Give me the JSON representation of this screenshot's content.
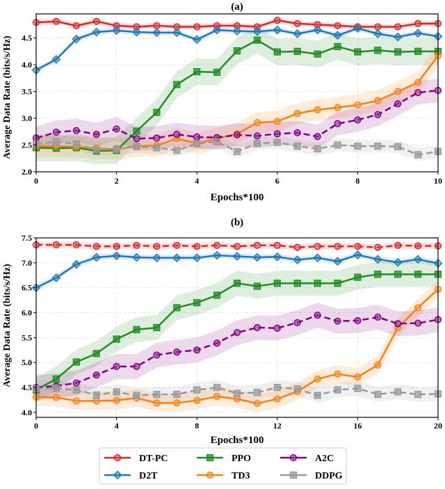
{
  "chart_data": [
    {
      "type": "line",
      "title": "(a)",
      "xlabel": "Epochs*100",
      "ylabel": "Average Data Rate (bits/s/Hz)",
      "xlim": [
        0,
        10
      ],
      "ylim": [
        2.0,
        4.95
      ],
      "xticks": [
        0,
        2,
        4,
        6,
        8,
        10
      ],
      "yticks": [
        2.0,
        2.5,
        3.0,
        3.5,
        4.0,
        4.5
      ],
      "ytick_labels": [
        "2.0",
        "2.5",
        "3.0",
        "3.5",
        "4.0",
        "4.5"
      ],
      "grid": true,
      "x": [
        0,
        0.5,
        1,
        1.5,
        2,
        2.5,
        3,
        3.5,
        4,
        4.5,
        5,
        5.5,
        6,
        6.5,
        7,
        7.5,
        8,
        8.5,
        9,
        9.5,
        10
      ],
      "series": [
        {
          "name": "DT-PC",
          "color": "#d62728",
          "marker": "circle",
          "dashed": false,
          "band": 0.05,
          "values": [
            4.79,
            4.81,
            4.73,
            4.81,
            4.73,
            4.71,
            4.73,
            4.71,
            4.71,
            4.73,
            4.73,
            4.71,
            4.83,
            4.77,
            4.75,
            4.73,
            4.71,
            4.71,
            4.71,
            4.77,
            4.77
          ]
        },
        {
          "name": "D2T",
          "color": "#1f77b4",
          "marker": "diamond",
          "dashed": false,
          "band": 0.05,
          "values": [
            3.9,
            4.1,
            4.48,
            4.61,
            4.64,
            4.61,
            4.6,
            4.6,
            4.47,
            4.65,
            4.63,
            4.62,
            4.65,
            4.58,
            4.65,
            4.55,
            4.68,
            4.58,
            4.52,
            4.59,
            4.53
          ]
        },
        {
          "name": "PPO",
          "color": "#228b22",
          "marker": "square",
          "dashed": false,
          "band": 0.25,
          "values": [
            2.45,
            2.44,
            2.45,
            2.39,
            2.4,
            2.76,
            3.11,
            3.63,
            3.87,
            3.86,
            4.26,
            4.46,
            4.24,
            4.25,
            4.2,
            4.34,
            4.24,
            4.27,
            4.24,
            4.25,
            4.25
          ]
        },
        {
          "name": "TD3",
          "color": "#ff7f0e",
          "marker": "circle",
          "dashed": false,
          "band": 0.2,
          "values": [
            2.48,
            2.48,
            2.47,
            2.44,
            2.42,
            2.48,
            2.49,
            2.62,
            2.53,
            2.62,
            2.71,
            2.92,
            2.94,
            3.09,
            3.16,
            3.2,
            3.25,
            3.33,
            3.5,
            3.67,
            4.17
          ]
        },
        {
          "name": "A2C",
          "color": "#800080",
          "marker": "circle",
          "dashed": true,
          "band": 0.22,
          "values": [
            2.63,
            2.74,
            2.77,
            2.7,
            2.8,
            2.62,
            2.63,
            2.7,
            2.65,
            2.64,
            2.69,
            2.67,
            2.71,
            2.73,
            2.66,
            2.9,
            2.97,
            3.07,
            3.27,
            3.48,
            3.52
          ]
        },
        {
          "name": "DDPG",
          "color": "#999999",
          "marker": "square",
          "dashed": true,
          "band": 0.12,
          "values": [
            2.52,
            2.56,
            2.52,
            2.41,
            2.43,
            2.47,
            2.45,
            2.4,
            2.53,
            2.56,
            2.38,
            2.53,
            2.55,
            2.48,
            2.43,
            2.5,
            2.48,
            2.48,
            2.47,
            2.32,
            2.38
          ]
        }
      ]
    },
    {
      "type": "line",
      "title": "(b)",
      "xlabel": "Epochs*100",
      "ylabel": "Average Data Rate (bits/s/Hz)",
      "xlim": [
        0,
        20
      ],
      "ylim": [
        3.9,
        7.5
      ],
      "xticks": [
        0,
        4,
        8,
        12,
        16,
        20
      ],
      "yticks": [
        4.0,
        4.5,
        5.0,
        5.5,
        6.0,
        6.5,
        7.0,
        7.5
      ],
      "ytick_labels": [
        "4.0",
        "4.5",
        "5.0",
        "5.5",
        "6.0",
        "6.5",
        "7.0",
        "7.5"
      ],
      "grid": true,
      "x": [
        0,
        1,
        2,
        3,
        4,
        5,
        6,
        7,
        8,
        9,
        10,
        11,
        12,
        13,
        14,
        15,
        16,
        17,
        18,
        19,
        20
      ],
      "series": [
        {
          "name": "DT-PC",
          "color": "#d62728",
          "marker": "circle",
          "dashed": true,
          "band": 0.06,
          "values": [
            7.36,
            7.36,
            7.36,
            7.33,
            7.33,
            7.35,
            7.33,
            7.35,
            7.33,
            7.35,
            7.33,
            7.35,
            7.35,
            7.31,
            7.33,
            7.33,
            7.33,
            7.31,
            7.35,
            7.34,
            7.34
          ]
        },
        {
          "name": "D2T",
          "color": "#1f77b4",
          "marker": "diamond",
          "dashed": false,
          "band": 0.06,
          "values": [
            6.5,
            6.7,
            6.97,
            7.11,
            7.14,
            7.11,
            7.1,
            7.1,
            7.1,
            7.15,
            7.13,
            7.11,
            7.12,
            7.06,
            7.1,
            7.03,
            7.16,
            7.07,
            7.01,
            7.07,
            6.99
          ]
        },
        {
          "name": "PPO",
          "color": "#228b22",
          "marker": "square",
          "dashed": false,
          "band": 0.25,
          "values": [
            4.45,
            4.67,
            5.01,
            5.18,
            5.47,
            5.66,
            5.7,
            6.1,
            6.2,
            6.35,
            6.59,
            6.53,
            6.59,
            6.59,
            6.59,
            6.59,
            6.71,
            6.77,
            6.77,
            6.77,
            6.77
          ]
        },
        {
          "name": "TD3",
          "color": "#ff7f0e",
          "marker": "circle",
          "dashed": false,
          "band": 0.18,
          "values": [
            4.31,
            4.3,
            4.23,
            4.23,
            4.24,
            4.29,
            4.19,
            4.19,
            4.24,
            4.32,
            4.27,
            4.18,
            4.27,
            4.42,
            4.67,
            4.77,
            4.71,
            4.95,
            5.7,
            6.1,
            6.47
          ]
        },
        {
          "name": "A2C",
          "color": "#800080",
          "marker": "circle",
          "dashed": true,
          "band": 0.25,
          "values": [
            4.5,
            4.53,
            4.59,
            4.75,
            4.92,
            4.92,
            5.15,
            5.21,
            5.25,
            5.39,
            5.6,
            5.7,
            5.69,
            5.8,
            5.95,
            5.83,
            5.84,
            5.91,
            5.78,
            5.79,
            5.86
          ]
        },
        {
          "name": "DDPG",
          "color": "#999999",
          "marker": "square",
          "dashed": true,
          "band": 0.15,
          "values": [
            4.48,
            4.48,
            4.45,
            4.35,
            4.41,
            4.34,
            4.36,
            4.36,
            4.45,
            4.5,
            4.38,
            4.4,
            4.5,
            4.47,
            4.34,
            4.45,
            4.48,
            4.36,
            4.41,
            4.36,
            4.37
          ]
        }
      ]
    }
  ],
  "legend": {
    "placement": "bottom-center",
    "entries": [
      {
        "name": "DT-PC",
        "color": "#d62728",
        "marker": "circle"
      },
      {
        "name": "D2T",
        "color": "#1f77b4",
        "marker": "diamond"
      },
      {
        "name": "PPO",
        "color": "#228b22",
        "marker": "square"
      },
      {
        "name": "TD3",
        "color": "#ff7f0e",
        "marker": "circle"
      },
      {
        "name": "A2C",
        "color": "#800080",
        "marker": "circle"
      },
      {
        "name": "DDPG",
        "color": "#999999",
        "marker": "square"
      }
    ]
  }
}
